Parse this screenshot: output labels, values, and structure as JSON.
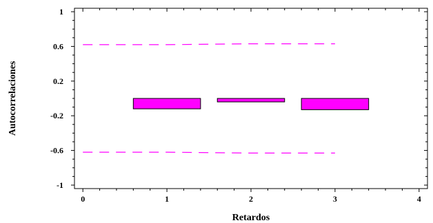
{
  "chart_data": {
    "type": "bar",
    "title": "",
    "xlabel": "Retardos",
    "ylabel": "Autocorrelaciones",
    "xlim": [
      -0.1,
      4.1
    ],
    "ylim": [
      -1.04,
      1.04
    ],
    "xticks": [
      0,
      1,
      2,
      3,
      4
    ],
    "yticks": [
      -1,
      -0.6,
      -0.2,
      0.2,
      0.6,
      1
    ],
    "ytick_labels": [
      "-1",
      "-0.6",
      "-0.2",
      "0.2",
      "0.6",
      "1"
    ],
    "bar_width": 0.8,
    "lags": [
      1,
      2,
      3
    ],
    "values": [
      -0.12,
      -0.04,
      -0.13
    ],
    "bar_color": "#ff00ff",
    "bar_edge_color": "#000000",
    "probability_limits": {
      "x_range": [
        0,
        3
      ],
      "upper": [
        0.62,
        0.62,
        0.63,
        0.63
      ],
      "lower": [
        -0.62,
        -0.62,
        -0.63,
        -0.63
      ],
      "color": "#ff00ff",
      "style": "dashed"
    },
    "grid": false
  }
}
